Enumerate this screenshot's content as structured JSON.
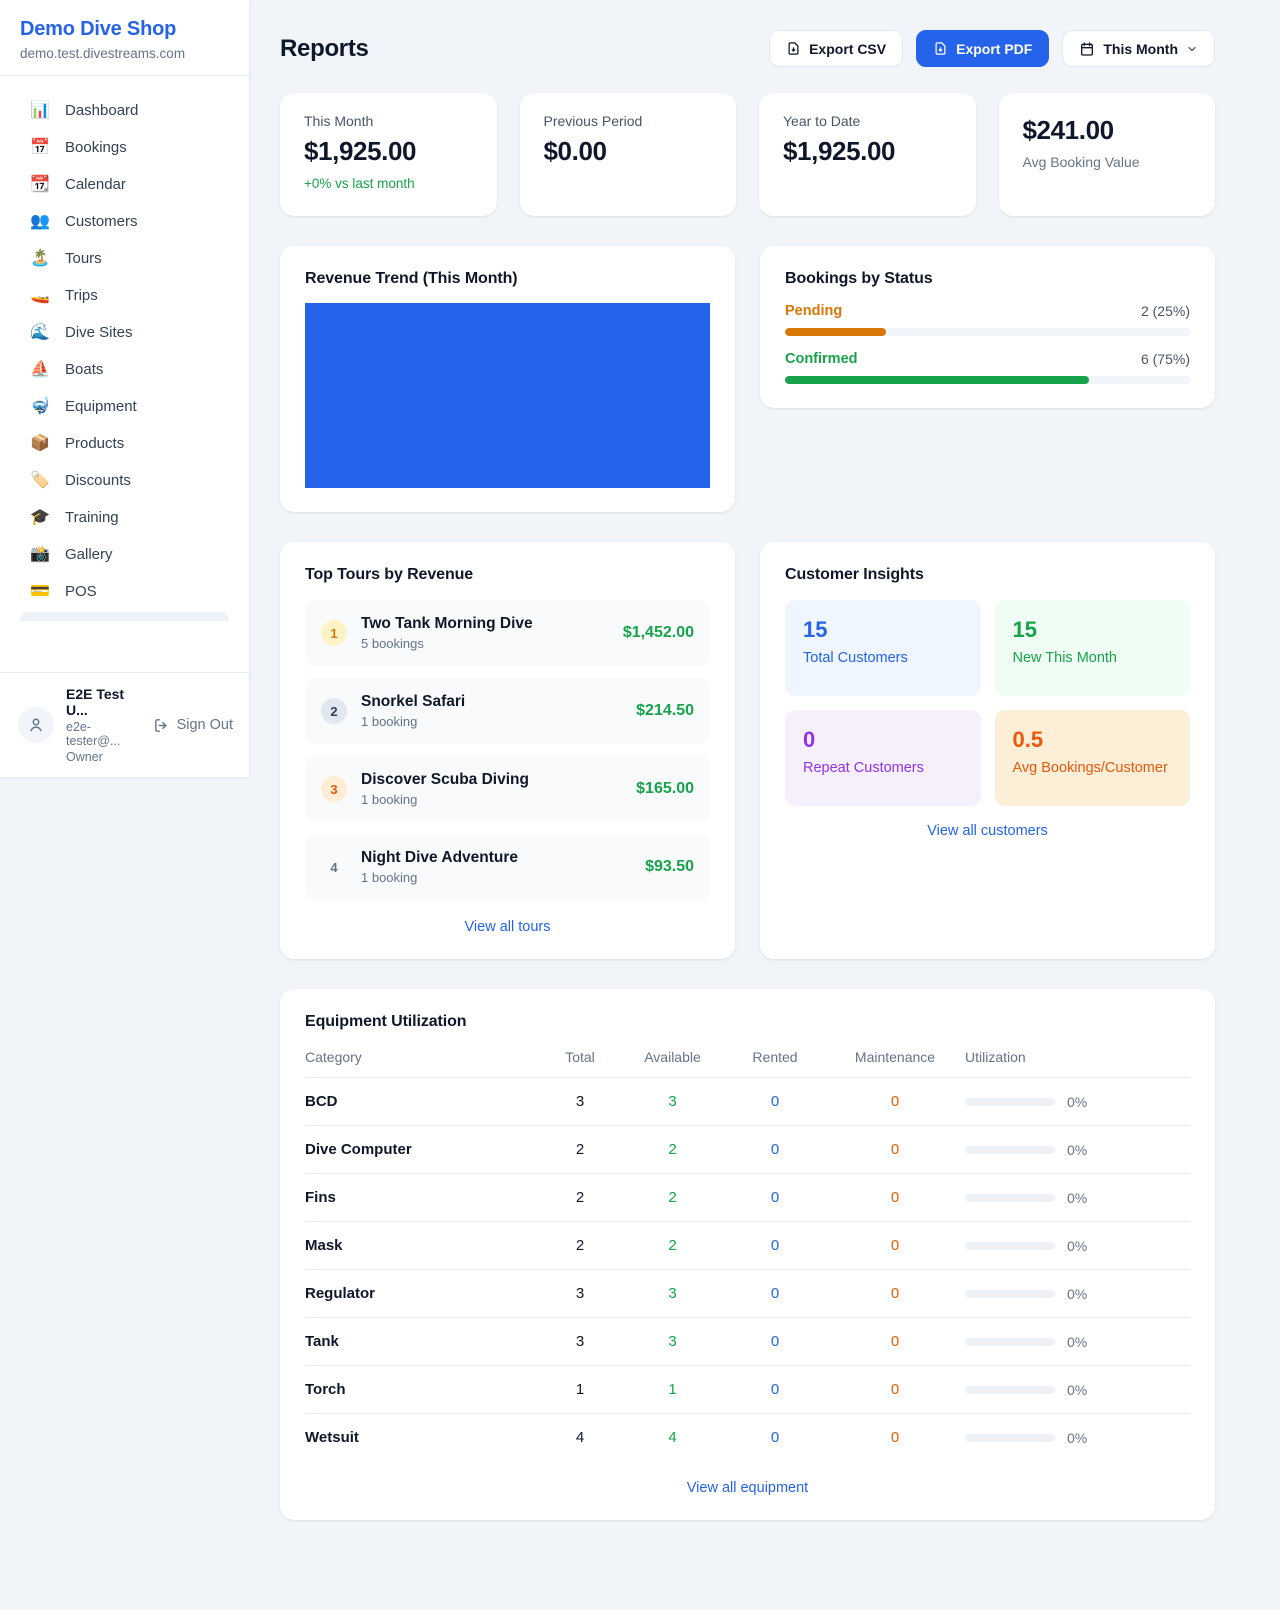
{
  "sidebar": {
    "brand": {
      "name": "Demo Dive Shop",
      "domain": "demo.test.divestreams.com"
    },
    "items": [
      {
        "icon": "📊",
        "label": "Dashboard"
      },
      {
        "icon": "📅",
        "label": "Bookings"
      },
      {
        "icon": "📆",
        "label": "Calendar"
      },
      {
        "icon": "👥",
        "label": "Customers"
      },
      {
        "icon": "🏝️",
        "label": "Tours"
      },
      {
        "icon": "🚤",
        "label": "Trips"
      },
      {
        "icon": "🌊",
        "label": "Dive Sites"
      },
      {
        "icon": "⛵",
        "label": "Boats"
      },
      {
        "icon": "🤿",
        "label": "Equipment"
      },
      {
        "icon": "📦",
        "label": "Products"
      },
      {
        "icon": "🏷️",
        "label": "Discounts"
      },
      {
        "icon": "🎓",
        "label": "Training"
      },
      {
        "icon": "📸",
        "label": "Gallery"
      },
      {
        "icon": "💳",
        "label": "POS"
      }
    ],
    "user": {
      "name": "E2E Test U...",
      "email": "e2e-tester@...",
      "role": "Owner",
      "sign_out": "Sign Out"
    }
  },
  "header": {
    "title": "Reports",
    "export_csv": "Export CSV",
    "export_pdf": "Export PDF",
    "period": "This Month"
  },
  "stats": [
    {
      "label": "This Month",
      "value": "$1,925.00",
      "delta": "+0% vs last month"
    },
    {
      "label": "Previous Period",
      "value": "$0.00"
    },
    {
      "label": "Year to Date",
      "value": "$1,925.00"
    },
    {
      "label": "Avg Booking Value",
      "value": "$241.00"
    }
  ],
  "revenue_trend": {
    "title": "Revenue Trend (This Month)"
  },
  "chart_data": {
    "type": "bar",
    "title": "Revenue Trend (This Month)",
    "categories": [
      "This Month"
    ],
    "values": [
      1925
    ]
  },
  "bookings_by_status": {
    "title": "Bookings by Status",
    "statuses": [
      {
        "label": "Pending",
        "count_text": "2 (25%)",
        "count": 2,
        "percent": 25
      },
      {
        "label": "Confirmed",
        "count_text": "6 (75%)",
        "count": 6,
        "percent": 75
      }
    ]
  },
  "top_tours": {
    "title": "Top Tours by Revenue",
    "view_all": "View all tours",
    "tours": [
      {
        "rank": "1",
        "name": "Two Tank Morning Dive",
        "bookings": "5 bookings",
        "revenue": "$1,452.00"
      },
      {
        "rank": "2",
        "name": "Snorkel Safari",
        "bookings": "1 booking",
        "revenue": "$214.50"
      },
      {
        "rank": "3",
        "name": "Discover Scuba Diving",
        "bookings": "1 booking",
        "revenue": "$165.00"
      },
      {
        "rank": "4",
        "name": "Night Dive Adventure",
        "bookings": "1 booking",
        "revenue": "$93.50"
      }
    ]
  },
  "customer_insights": {
    "title": "Customer Insights",
    "view_all": "View all customers",
    "tiles": [
      {
        "value": "15",
        "label": "Total Customers"
      },
      {
        "value": "15",
        "label": "New This Month"
      },
      {
        "value": "0",
        "label": "Repeat Customers"
      },
      {
        "value": "0.5",
        "label": "Avg Bookings/Customer"
      }
    ]
  },
  "equipment": {
    "title": "Equipment Utilization",
    "view_all": "View all equipment",
    "columns": [
      "Category",
      "Total",
      "Available",
      "Rented",
      "Maintenance",
      "Utilization"
    ],
    "rows": [
      {
        "category": "BCD",
        "total": "3",
        "available": "3",
        "rented": "0",
        "maintenance": "0",
        "utilization": "0%",
        "utilization_percent": 0
      },
      {
        "category": "Dive Computer",
        "total": "2",
        "available": "2",
        "rented": "0",
        "maintenance": "0",
        "utilization": "0%",
        "utilization_percent": 0
      },
      {
        "category": "Fins",
        "total": "2",
        "available": "2",
        "rented": "0",
        "maintenance": "0",
        "utilization": "0%",
        "utilization_percent": 0
      },
      {
        "category": "Mask",
        "total": "2",
        "available": "2",
        "rented": "0",
        "maintenance": "0",
        "utilization": "0%",
        "utilization_percent": 0
      },
      {
        "category": "Regulator",
        "total": "3",
        "available": "3",
        "rented": "0",
        "maintenance": "0",
        "utilization": "0%",
        "utilization_percent": 0
      },
      {
        "category": "Tank",
        "total": "3",
        "available": "3",
        "rented": "0",
        "maintenance": "0",
        "utilization": "0%",
        "utilization_percent": 0
      },
      {
        "category": "Torch",
        "total": "1",
        "available": "1",
        "rented": "0",
        "maintenance": "0",
        "utilization": "0%",
        "utilization_percent": 0
      },
      {
        "category": "Wetsuit",
        "total": "4",
        "available": "4",
        "rented": "0",
        "maintenance": "0",
        "utilization": "0%",
        "utilization_percent": 0
      }
    ]
  },
  "colors": {
    "accent_blue": "#2563eb",
    "green": "#16a34a",
    "orange_pending": "#d97706",
    "orange_deep": "#ea580c",
    "purple": "#9333ea"
  }
}
